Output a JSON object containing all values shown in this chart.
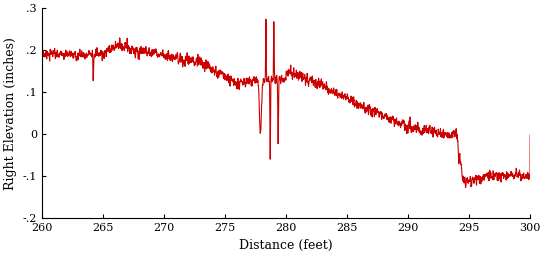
{
  "xlim": [
    260,
    300
  ],
  "ylim": [
    -0.2,
    0.3
  ],
  "yticks": [
    -0.2,
    -0.1,
    0,
    0.1,
    0.2,
    0.3
  ],
  "xticks": [
    260,
    265,
    270,
    275,
    280,
    285,
    290,
    295,
    300
  ],
  "xlabel": "Distance (feet)",
  "ylabel": "Right Elevation (inches)",
  "line_color": "#cc0000",
  "line_width": 0.8,
  "bg_color": "#ffffff",
  "figsize": [
    5.45,
    2.56
  ],
  "dpi": 100
}
